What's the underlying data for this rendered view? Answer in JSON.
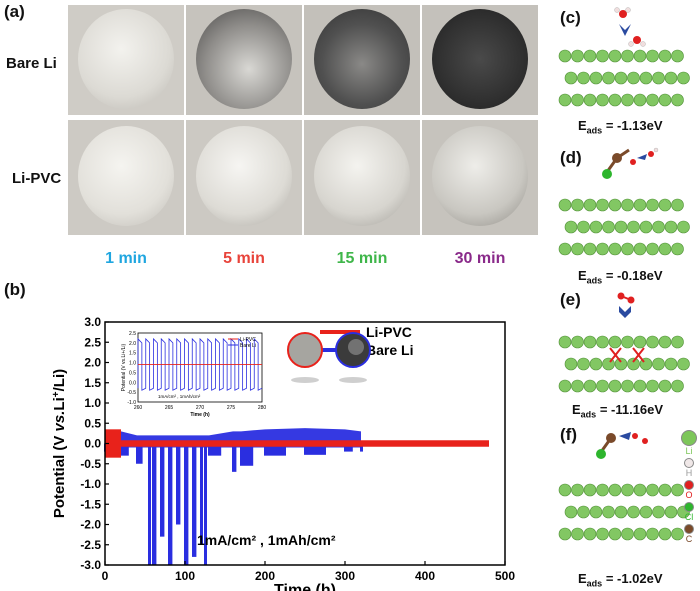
{
  "panels": {
    "a": "(a)",
    "b": "(b)",
    "c": "(c)",
    "d": "(d)",
    "e": "(e)",
    "f": "(f)"
  },
  "photos": {
    "row_labels": [
      "Bare Li",
      "Li-PVC"
    ],
    "times": [
      {
        "label": "1 min",
        "color": "#1fa6e0"
      },
      {
        "label": "5 min",
        "color": "#e8433a"
      },
      {
        "label": "15 min",
        "color": "#3fb64a"
      },
      {
        "label": "30 min",
        "color": "#8a2a8a"
      }
    ]
  },
  "adsorption": {
    "c": {
      "sub": "ads",
      "value": "= -1.13eV"
    },
    "d": {
      "sub": "ads",
      "value": "= -0.18eV"
    },
    "e": {
      "sub": "ads",
      "value": "= -11.16eV"
    },
    "f": {
      "sub": "ads",
      "value": "= -1.02eV"
    },
    "E": "E"
  },
  "atom_legend": [
    {
      "label": "Li",
      "color": "#7dc65a"
    },
    {
      "label": "H",
      "color": "#f0e8e8"
    },
    {
      "label": "O",
      "color": "#e02020"
    },
    {
      "label": "Cl",
      "color": "#2db52d"
    },
    {
      "label": "C",
      "color": "#7a4a2a"
    }
  ],
  "chart_data": {
    "type": "line",
    "xlabel": "Time (h)",
    "ylabel": "Potential (V vs.Li+/Li)",
    "xlim": [
      0,
      500
    ],
    "ylim": [
      -3.0,
      3.0
    ],
    "xticks": [
      0,
      100,
      200,
      300,
      400,
      500
    ],
    "yticks": [
      -3.0,
      -2.5,
      -2.0,
      -1.5,
      -1.0,
      -0.5,
      0.0,
      0.5,
      1.0,
      1.5,
      2.0,
      2.5,
      3.0
    ],
    "annotation": "1mA/cm² , 1mAh/cm²",
    "series": [
      {
        "name": "Li-PVC",
        "color": "#e8221b",
        "x": [
          0,
          480
        ],
        "y_band": [
          -0.08,
          0.08
        ]
      },
      {
        "name": "Bare Li",
        "color": "#2a2ee0",
        "x": [
          0,
          20,
          40,
          55,
          60,
          70,
          80,
          90,
          100,
          110,
          120,
          125,
          130,
          160,
          170,
          200,
          250,
          300,
          320
        ],
        "y_min": [
          -0.2,
          -0.3,
          -0.5,
          -3.0,
          -3.0,
          -2.3,
          -3.0,
          -2.0,
          -3.0,
          -2.8,
          -2.5,
          -3.0,
          -0.3,
          -0.7,
          -0.55,
          -0.3,
          -0.28,
          -0.2,
          -0.2
        ],
        "y_max": [
          0.2,
          0.3,
          0.2,
          0.2,
          0.2,
          0.2,
          0.2,
          0.2,
          0.2,
          0.2,
          0.2,
          0.2,
          0.2,
          0.3,
          0.3,
          0.35,
          0.38,
          0.35,
          0.3
        ]
      }
    ],
    "inset": {
      "xlabel": "Time (h)",
      "ylabel": "Potential (V vs.Li+/Li)",
      "xticks": [
        260,
        265,
        270,
        275,
        280
      ],
      "yticks": [
        -1.0,
        -0.5,
        0.0,
        0.5,
        1.0,
        1.5,
        2.0,
        2.5
      ],
      "legend": [
        "Li-PVC",
        "Bare Li"
      ],
      "note": "1mA/cm² , 1mAh/cm²"
    }
  }
}
